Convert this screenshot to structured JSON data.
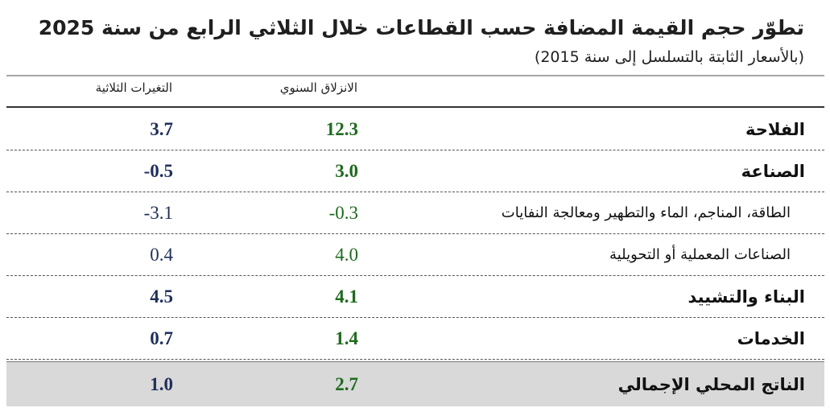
{
  "header": {
    "title": "تطوّر حجم القيمة المضافة حسب القطاعات خلال الثلاثي الرابع من سنة 2025",
    "subtitle": "(بالأسعار الثابتة بالتسلسل إلى سنة 2015)"
  },
  "table": {
    "headers": [
      "الانزلاق السنوي",
      "التغيرات الثلاثية"
    ],
    "rows": [
      [
        "الفلاحة",
        "12.3",
        "3.7"
      ],
      [
        "الصناعة",
        "3.0",
        "-0.5"
      ],
      [
        "الطاقة، المناجم، الماء والتطهير ومعالجة النفايات",
        "-0.3",
        "-3.1"
      ],
      [
        "الصناعات المعملية أو التحويلية",
        "4.0",
        "0.4"
      ],
      [
        "البناء والتشييد",
        "4.1",
        "4.5"
      ],
      [
        "الخدمات",
        "1.4",
        "0.7"
      ],
      [
        "الناتج المحلي الإجمالي",
        "2.7",
        "1.0"
      ]
    ]
  }
}
